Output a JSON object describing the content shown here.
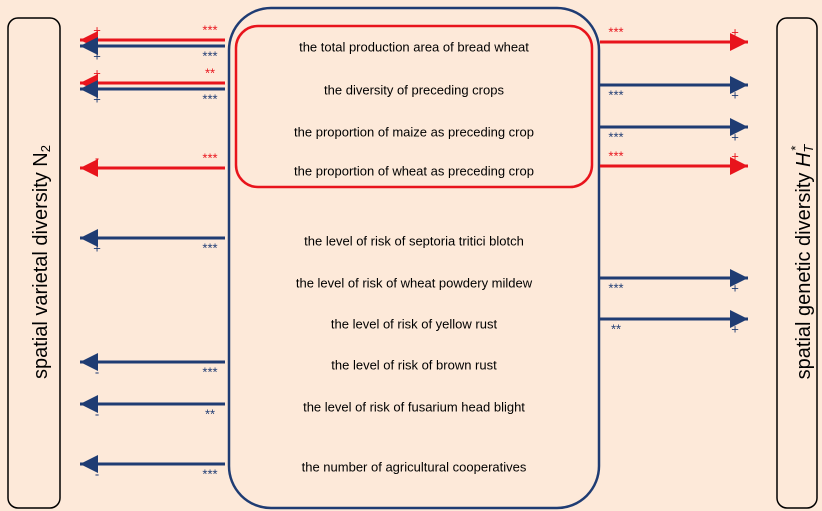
{
  "left_label": {
    "text": "spatial varietal diversity ",
    "symbol": "N",
    "subscript": "2"
  },
  "right_label": {
    "text": "spatial genetic diversity ",
    "symbol": "H",
    "subscript": "T",
    "superscript": "*"
  },
  "colors": {
    "positive_link": "#e8141c",
    "other_link": "#1f3c73"
  },
  "factors": [
    {
      "label": "the total production area of bread wheat",
      "left": [
        {
          "sign": "+",
          "significance": "***",
          "color": "#e8141c"
        },
        {
          "sign": "+",
          "significance": "***",
          "color": "#1f3c73"
        }
      ],
      "right": [
        {
          "sign": "+",
          "significance": "***",
          "color": "#e8141c"
        }
      ]
    },
    {
      "label": "the diversity of preceding crops",
      "left": [
        {
          "sign": "+",
          "significance": "**",
          "color": "#e8141c"
        },
        {
          "sign": "+",
          "significance": "***",
          "color": "#1f3c73"
        }
      ],
      "right": [
        {
          "sign": "+",
          "significance": "***",
          "color": "#1f3c73"
        }
      ]
    },
    {
      "label": "the proportion of maize as preceding crop",
      "left": [],
      "right": [
        {
          "sign": "+",
          "significance": "***",
          "color": "#1f3c73"
        }
      ]
    },
    {
      "label": "the proportion of wheat as preceding crop",
      "left": [
        {
          "sign": "-",
          "significance": "***",
          "color": "#e8141c"
        }
      ],
      "right": [
        {
          "sign": "+",
          "significance": "***",
          "color": "#e8141c"
        }
      ]
    },
    {
      "label": "the level of risk of septoria tritici blotch",
      "left": [
        {
          "sign": "+",
          "significance": "***",
          "color": "#1f3c73"
        }
      ],
      "right": []
    },
    {
      "label": "the level of risk of wheat powdery mildew",
      "left": [],
      "right": [
        {
          "sign": "+",
          "significance": "***",
          "color": "#1f3c73"
        }
      ]
    },
    {
      "label": "the level of risk of yellow rust",
      "left": [],
      "right": [
        {
          "sign": "+",
          "significance": "**",
          "color": "#1f3c73"
        }
      ]
    },
    {
      "label": "the level of risk of brown rust",
      "left": [
        {
          "sign": "-",
          "significance": "***",
          "color": "#1f3c73"
        }
      ],
      "right": []
    },
    {
      "label": "the level of risk of fusarium head blight",
      "left": [
        {
          "sign": "-",
          "significance": "**",
          "color": "#1f3c73"
        }
      ],
      "right": []
    },
    {
      "label": "the number of agricultural cooperatives",
      "left": [
        {
          "sign": "-",
          "significance": "***",
          "color": "#1f3c73"
        }
      ],
      "right": []
    }
  ]
}
